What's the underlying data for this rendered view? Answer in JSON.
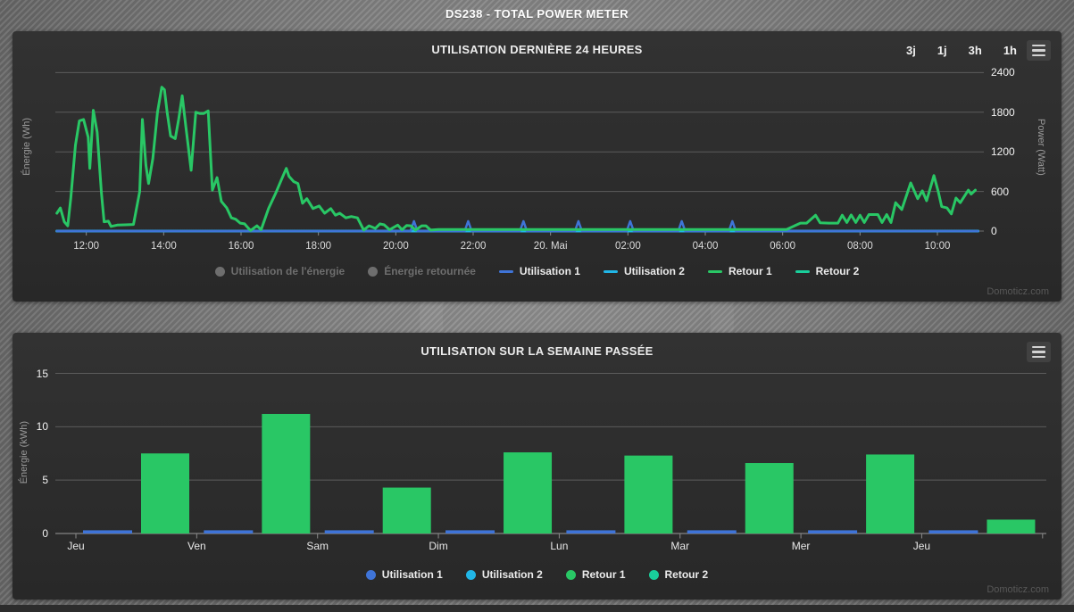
{
  "page": {
    "header_title": "DS238 - TOTAL POWER METER",
    "watermark": "Domoticz.com",
    "colors": {
      "utilisation1": "#3f74d8",
      "utilisation2": "#21b6e7",
      "retour1": "#29c765",
      "retour2": "#19cf9b",
      "disabled_legend": "#6e6e6e",
      "gridline": "#5c5c5c",
      "panel_bg": "#2d2d2d"
    }
  },
  "chart_data": [
    {
      "type": "line",
      "title": "UTILISATION DERNIÈRE 24 HEURES",
      "ylabel_left": "Énergie (Wh)",
      "ylabel_right": "Power (Watt)",
      "ylim": [
        0,
        2400
      ],
      "y_right_ticks": [
        0,
        600,
        1200,
        1800,
        2400
      ],
      "xlim_hours": [
        11.2,
        35.2
      ],
      "grid": true,
      "legend_position": "bottom",
      "range_buttons": [
        "3j",
        "1j",
        "3h",
        "1h"
      ],
      "x_ticks": [
        {
          "hour": 12,
          "label": "12:00"
        },
        {
          "hour": 14,
          "label": "14:00"
        },
        {
          "hour": 16,
          "label": "16:00"
        },
        {
          "hour": 18,
          "label": "18:00"
        },
        {
          "hour": 20,
          "label": "20:00"
        },
        {
          "hour": 22,
          "label": "22:00"
        },
        {
          "hour": 24,
          "label": "20. Mai"
        },
        {
          "hour": 26,
          "label": "02:00"
        },
        {
          "hour": 28,
          "label": "04:00"
        },
        {
          "hour": 30,
          "label": "06:00"
        },
        {
          "hour": 32,
          "label": "08:00"
        },
        {
          "hour": 34,
          "label": "10:00"
        }
      ],
      "legend": [
        {
          "label": "Utilisation de l'énergie",
          "symbol": "circle",
          "color": "#6e6e6e",
          "disabled": true
        },
        {
          "label": "Énergie retournée",
          "symbol": "circle",
          "color": "#6e6e6e",
          "disabled": true
        },
        {
          "label": "Utilisation 1",
          "symbol": "line",
          "color": "#3f74d8",
          "disabled": false
        },
        {
          "label": "Utilisation 2",
          "symbol": "line",
          "color": "#21b6e7",
          "disabled": false
        },
        {
          "label": "Retour 1",
          "symbol": "line",
          "color": "#29c765",
          "disabled": false
        },
        {
          "label": "Retour 2",
          "symbol": "line",
          "color": "#19cf9b",
          "disabled": false
        }
      ],
      "series": [
        {
          "name": "Retour 2",
          "color": "#19cf9b",
          "width": 3,
          "points": [
            [
              11.24,
              0
            ],
            [
              35.05,
              0
            ]
          ]
        },
        {
          "name": "Utilisation 2",
          "color": "#21b6e7",
          "width": 3,
          "points": [
            [
              11.24,
              0
            ],
            [
              35.05,
              0
            ]
          ]
        },
        {
          "name": "Utilisation 1",
          "color": "#3f74d8",
          "width": 2.5,
          "points": [
            [
              11.24,
              0
            ],
            [
              20.38,
              0
            ],
            [
              20.47,
              150
            ],
            [
              20.56,
              0
            ],
            [
              21.78,
              0
            ],
            [
              21.87,
              150
            ],
            [
              21.96,
              0
            ],
            [
              23.21,
              0
            ],
            [
              23.3,
              150
            ],
            [
              23.39,
              0
            ],
            [
              24.63,
              0
            ],
            [
              24.72,
              150
            ],
            [
              24.81,
              0
            ],
            [
              25.97,
              0
            ],
            [
              26.06,
              150
            ],
            [
              26.15,
              0
            ],
            [
              27.3,
              0
            ],
            [
              27.39,
              150
            ],
            [
              27.48,
              0
            ],
            [
              28.61,
              0
            ],
            [
              28.7,
              150
            ],
            [
              28.79,
              0
            ],
            [
              35.05,
              0
            ]
          ]
        },
        {
          "name": "Retour 1",
          "color": "#29c765",
          "width": 3,
          "points": [
            [
              11.24,
              270
            ],
            [
              11.33,
              350
            ],
            [
              11.43,
              140
            ],
            [
              11.52,
              80
            ],
            [
              11.6,
              500
            ],
            [
              11.66,
              900
            ],
            [
              11.72,
              1300
            ],
            [
              11.82,
              1670
            ],
            [
              11.93,
              1690
            ],
            [
              12.05,
              1420
            ],
            [
              12.09,
              950
            ],
            [
              12.18,
              1830
            ],
            [
              12.28,
              1500
            ],
            [
              12.39,
              580
            ],
            [
              12.46,
              140
            ],
            [
              12.57,
              150
            ],
            [
              12.64,
              70
            ],
            [
              12.8,
              90
            ],
            [
              13.0,
              95
            ],
            [
              13.22,
              100
            ],
            [
              13.38,
              600
            ],
            [
              13.45,
              1690
            ],
            [
              13.54,
              1000
            ],
            [
              13.61,
              720
            ],
            [
              13.72,
              1100
            ],
            [
              13.84,
              1800
            ],
            [
              13.95,
              2180
            ],
            [
              14.02,
              2140
            ],
            [
              14.09,
              1800
            ],
            [
              14.18,
              1440
            ],
            [
              14.3,
              1400
            ],
            [
              14.39,
              1700
            ],
            [
              14.48,
              2050
            ],
            [
              14.57,
              1600
            ],
            [
              14.71,
              920
            ],
            [
              14.83,
              1800
            ],
            [
              14.94,
              1780
            ],
            [
              15.03,
              1780
            ],
            [
              15.15,
              1820
            ],
            [
              15.26,
              620
            ],
            [
              15.38,
              810
            ],
            [
              15.49,
              450
            ],
            [
              15.63,
              350
            ],
            [
              15.75,
              200
            ],
            [
              15.86,
              180
            ],
            [
              15.98,
              120
            ],
            [
              16.09,
              110
            ],
            [
              16.21,
              30
            ],
            [
              16.25,
              10
            ],
            [
              16.41,
              80
            ],
            [
              16.52,
              20
            ],
            [
              16.71,
              340
            ],
            [
              16.9,
              580
            ],
            [
              17.06,
              800
            ],
            [
              17.17,
              950
            ],
            [
              17.24,
              830
            ],
            [
              17.36,
              750
            ],
            [
              17.47,
              720
            ],
            [
              17.59,
              420
            ],
            [
              17.7,
              490
            ],
            [
              17.86,
              340
            ],
            [
              18.02,
              380
            ],
            [
              18.16,
              270
            ],
            [
              18.32,
              340
            ],
            [
              18.44,
              240
            ],
            [
              18.55,
              270
            ],
            [
              18.71,
              200
            ],
            [
              18.85,
              220
            ],
            [
              19.01,
              200
            ],
            [
              19.17,
              15
            ],
            [
              19.31,
              80
            ],
            [
              19.47,
              40
            ],
            [
              19.59,
              110
            ],
            [
              19.7,
              95
            ],
            [
              19.84,
              20
            ],
            [
              20.05,
              90
            ],
            [
              20.16,
              20
            ],
            [
              20.28,
              85
            ],
            [
              20.39,
              80
            ],
            [
              20.51,
              15
            ],
            [
              20.67,
              80
            ],
            [
              20.78,
              80
            ],
            [
              20.9,
              15
            ],
            [
              21.1,
              25
            ],
            [
              23.0,
              25
            ],
            [
              26.0,
              25
            ],
            [
              29.0,
              25
            ],
            [
              30.1,
              25
            ],
            [
              30.46,
              120
            ],
            [
              30.62,
              120
            ],
            [
              30.85,
              240
            ],
            [
              30.97,
              125
            ],
            [
              31.2,
              120
            ],
            [
              31.43,
              120
            ],
            [
              31.54,
              240
            ],
            [
              31.66,
              130
            ],
            [
              31.77,
              245
            ],
            [
              31.89,
              130
            ],
            [
              32.0,
              240
            ],
            [
              32.11,
              130
            ],
            [
              32.23,
              250
            ],
            [
              32.46,
              250
            ],
            [
              32.57,
              130
            ],
            [
              32.69,
              250
            ],
            [
              32.8,
              130
            ],
            [
              32.92,
              430
            ],
            [
              33.08,
              325
            ],
            [
              33.31,
              730
            ],
            [
              33.49,
              490
            ],
            [
              33.61,
              610
            ],
            [
              33.72,
              460
            ],
            [
              33.91,
              840
            ],
            [
              34.02,
              600
            ],
            [
              34.11,
              370
            ],
            [
              34.25,
              350
            ],
            [
              34.36,
              260
            ],
            [
              34.48,
              500
            ],
            [
              34.59,
              430
            ],
            [
              34.8,
              620
            ],
            [
              34.87,
              560
            ],
            [
              34.98,
              620
            ]
          ]
        }
      ]
    },
    {
      "type": "bar",
      "title": "UTILISATION SUR LA SEMAINE PASSÉE",
      "ylabel": "Énergie (kWh)",
      "ylim": [
        0,
        15
      ],
      "y_ticks": [
        0,
        5,
        10,
        15
      ],
      "grid": true,
      "legend_position": "bottom",
      "categories": [
        "Jeu",
        "Ven",
        "Sam",
        "Dim",
        "Lun",
        "Mar",
        "Mer",
        "Jeu"
      ],
      "series": [
        {
          "name": "Utilisation 1",
          "color": "#3f74d8",
          "values": [
            0.3,
            0.3,
            0.3,
            0.3,
            0.3,
            0.3,
            0.3,
            0.3
          ]
        },
        {
          "name": "Utilisation 2",
          "color": "#21b6e7",
          "values": [
            0,
            0,
            0,
            0,
            0,
            0,
            0,
            0
          ]
        },
        {
          "name": "Retour 1",
          "color": "#29c765",
          "values": [
            7.5,
            11.2,
            4.3,
            7.6,
            7.3,
            6.6,
            7.4,
            1.3
          ]
        },
        {
          "name": "Retour 2",
          "color": "#19cf9b",
          "values": [
            0,
            0,
            0,
            0,
            0,
            0,
            0,
            0
          ]
        }
      ],
      "legend": [
        {
          "label": "Utilisation 1",
          "symbol": "circle",
          "color": "#3f74d8",
          "disabled": false
        },
        {
          "label": "Utilisation 2",
          "symbol": "circle",
          "color": "#21b6e7",
          "disabled": false
        },
        {
          "label": "Retour 1",
          "symbol": "circle",
          "color": "#29c765",
          "disabled": false
        },
        {
          "label": "Retour 2",
          "symbol": "circle",
          "color": "#19cf9b",
          "disabled": false
        }
      ]
    }
  ]
}
